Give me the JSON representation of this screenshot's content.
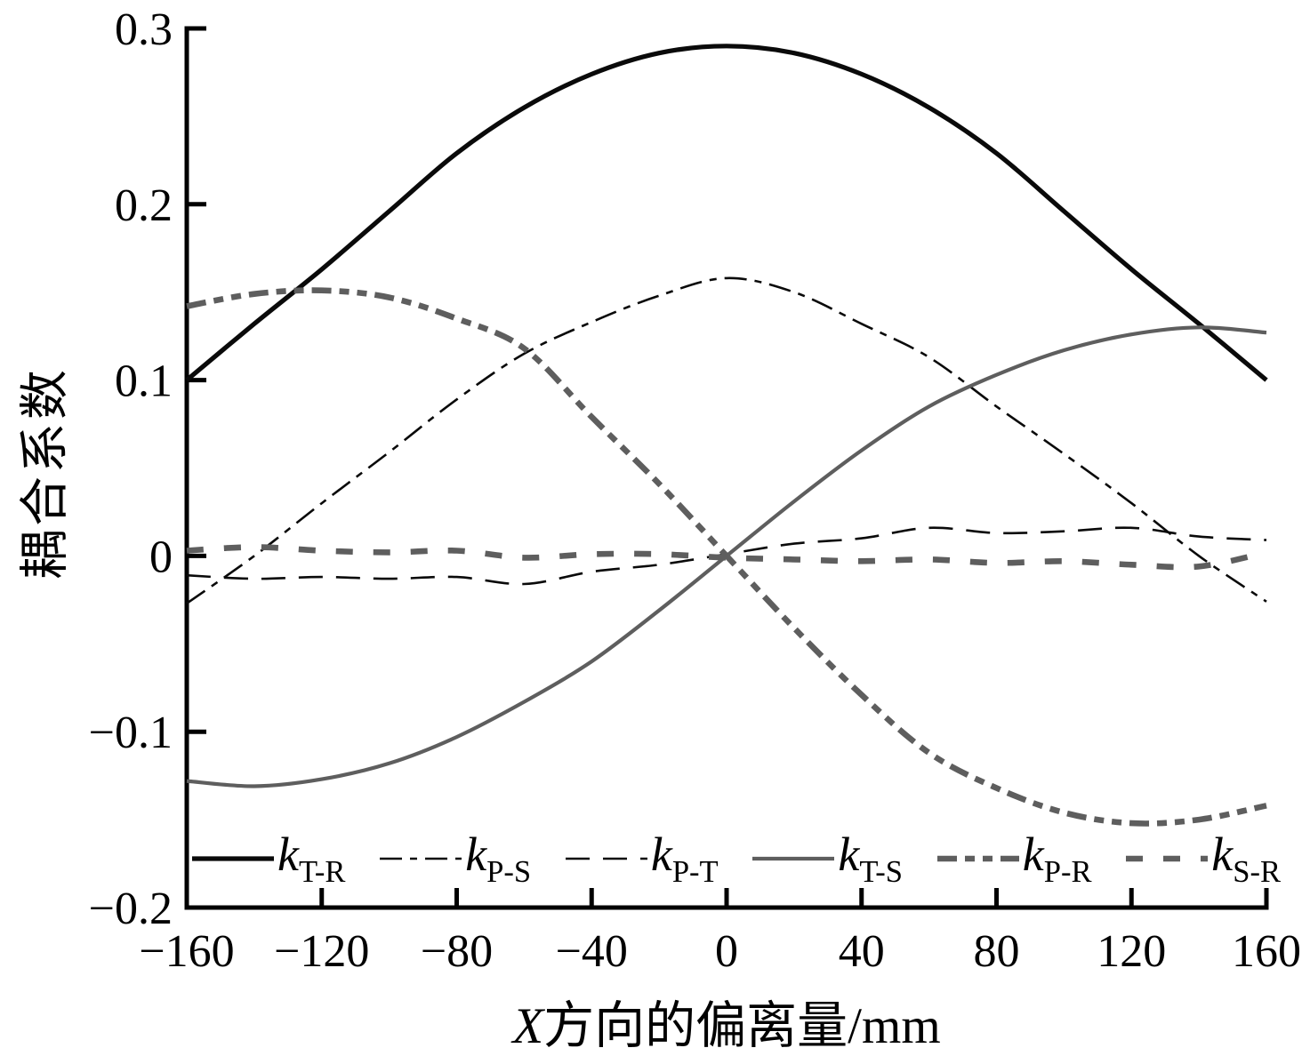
{
  "chart_data": {
    "type": "line",
    "title": "",
    "xlabel": "X方向的偏离量/mm",
    "xlabel_italic": "X",
    "xlabel_rest": "方向的偏离量/mm",
    "ylabel": "耦合系数",
    "xlim": [
      -160,
      160
    ],
    "ylim": [
      -0.2,
      0.3
    ],
    "xticks": [
      -160,
      -120,
      -80,
      -40,
      0,
      40,
      80,
      120,
      160
    ],
    "xtick_labels": [
      "−160",
      "−120",
      "−80",
      "−40",
      "0",
      "40",
      "80",
      "120",
      "160"
    ],
    "yticks": [
      0.3,
      0.2,
      0.1,
      0,
      -0.1,
      -0.2
    ],
    "ytick_labels": [
      "0.3",
      "0.2",
      "0.1",
      "0",
      "−0.1",
      "−0.2"
    ],
    "grid": false,
    "legend_position": "inside-bottom",
    "colors": {
      "black": "#0a0a0a",
      "gray": "#5e5e5e"
    },
    "x": [
      -160,
      -140,
      -120,
      -100,
      -80,
      -60,
      -40,
      -20,
      0,
      20,
      40,
      60,
      80,
      100,
      120,
      140,
      160
    ],
    "series": [
      {
        "name": "k_T-R",
        "label_main": "k",
        "label_sub": "T-R",
        "style": "solid",
        "thickness": "thick",
        "color": "#0a0a0a",
        "values": [
          0.1,
          0.132,
          0.163,
          0.196,
          0.229,
          0.255,
          0.274,
          0.286,
          0.29,
          0.286,
          0.274,
          0.255,
          0.229,
          0.196,
          0.163,
          0.132,
          0.1
        ]
      },
      {
        "name": "k_P-S",
        "label_main": "k",
        "label_sub": "P-S",
        "style": "dash-dot",
        "thickness": "thin",
        "color": "#0a0a0a",
        "values": [
          -0.027,
          0.0,
          0.03,
          0.059,
          0.089,
          0.115,
          0.133,
          0.148,
          0.158,
          0.15,
          0.132,
          0.113,
          0.085,
          0.058,
          0.03,
          0.0,
          -0.026
        ]
      },
      {
        "name": "k_P-T",
        "label_main": "k",
        "label_sub": "P-T",
        "style": "dash",
        "thickness": "thin",
        "color": "#0a0a0a",
        "values": [
          -0.011,
          -0.013,
          -0.012,
          -0.013,
          -0.012,
          -0.016,
          -0.009,
          -0.005,
          0.001,
          0.007,
          0.01,
          0.016,
          0.013,
          0.014,
          0.016,
          0.011,
          0.009
        ]
      },
      {
        "name": "k_T-S",
        "label_main": "k",
        "label_sub": "T-S",
        "style": "solid",
        "thickness": "medium",
        "color": "#5e5e5e",
        "values": [
          -0.128,
          -0.131,
          -0.127,
          -0.118,
          -0.103,
          -0.083,
          -0.06,
          -0.031,
          0.0,
          0.031,
          0.06,
          0.085,
          0.103,
          0.117,
          0.126,
          0.13,
          0.127
        ]
      },
      {
        "name": "k_P-R",
        "label_main": "k",
        "label_sub": "P-R",
        "style": "dash-dot-dot",
        "thickness": "xthick",
        "color": "#5e5e5e",
        "values": [
          0.142,
          0.149,
          0.151,
          0.147,
          0.135,
          0.118,
          0.079,
          0.041,
          0.0,
          -0.041,
          -0.079,
          -0.112,
          -0.132,
          -0.146,
          -0.152,
          -0.15,
          -0.142
        ]
      },
      {
        "name": "k_S-R",
        "label_main": "k",
        "label_sub": "S-R",
        "style": "dash",
        "thickness": "xthick",
        "color": "#5e5e5e",
        "values": [
          0.003,
          0.005,
          0.003,
          0.002,
          0.003,
          -0.001,
          0.001,
          0.001,
          -0.001,
          -0.002,
          -0.003,
          -0.002,
          -0.004,
          -0.003,
          -0.005,
          -0.006,
          0.002
        ]
      }
    ]
  }
}
